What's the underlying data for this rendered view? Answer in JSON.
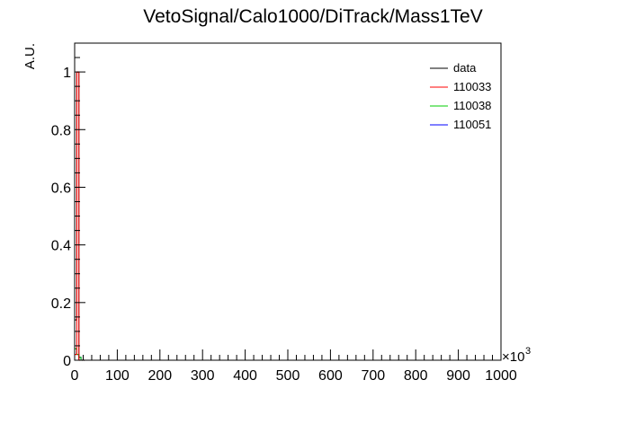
{
  "chart_data": {
    "type": "line",
    "title": "VetoSignal/Calo1000/DiTrack/Mass1TeV",
    "xlabel": "",
    "ylabel": "A.U.",
    "x_multiplier_label": "×10",
    "x_multiplier_exponent": "3",
    "xlim": [
      0,
      1000
    ],
    "ylim": [
      0,
      1.1
    ],
    "x_ticks": [
      0,
      100,
      200,
      300,
      400,
      500,
      600,
      700,
      800,
      900,
      1000
    ],
    "x_tick_labels": [
      "0",
      "100",
      "200",
      "300",
      "400",
      "500",
      "600",
      "700",
      "800",
      "900",
      "1000"
    ],
    "y_ticks": [
      0,
      0.2,
      0.4,
      0.6,
      0.8,
      1
    ],
    "y_tick_labels": [
      "0",
      "0.2",
      "0.4",
      "0.6",
      "0.8",
      "1"
    ],
    "grid": false,
    "legend_position": "top-right",
    "series": [
      {
        "name": "data",
        "color": "#000000",
        "x": [
          0,
          5,
          10,
          15,
          20
        ],
        "values": [
          0.14,
          1.0,
          0.0,
          0.0,
          0.0
        ]
      },
      {
        "name": "110033",
        "color": "#ff0000",
        "x": [
          0,
          5,
          10,
          15,
          20
        ],
        "values": [
          0.02,
          1.0,
          0.0,
          0.0,
          0.0
        ]
      },
      {
        "name": "110038",
        "color": "#00cc00",
        "x": [
          0,
          5,
          10,
          15,
          20
        ],
        "values": [
          0.04,
          0.02,
          0.01,
          0.0,
          0.0
        ]
      },
      {
        "name": "110051",
        "color": "#0000ff",
        "x": [
          0,
          5,
          10,
          15,
          20
        ],
        "values": [
          0.04,
          0.02,
          0.01,
          0.0,
          0.0
        ]
      }
    ]
  }
}
